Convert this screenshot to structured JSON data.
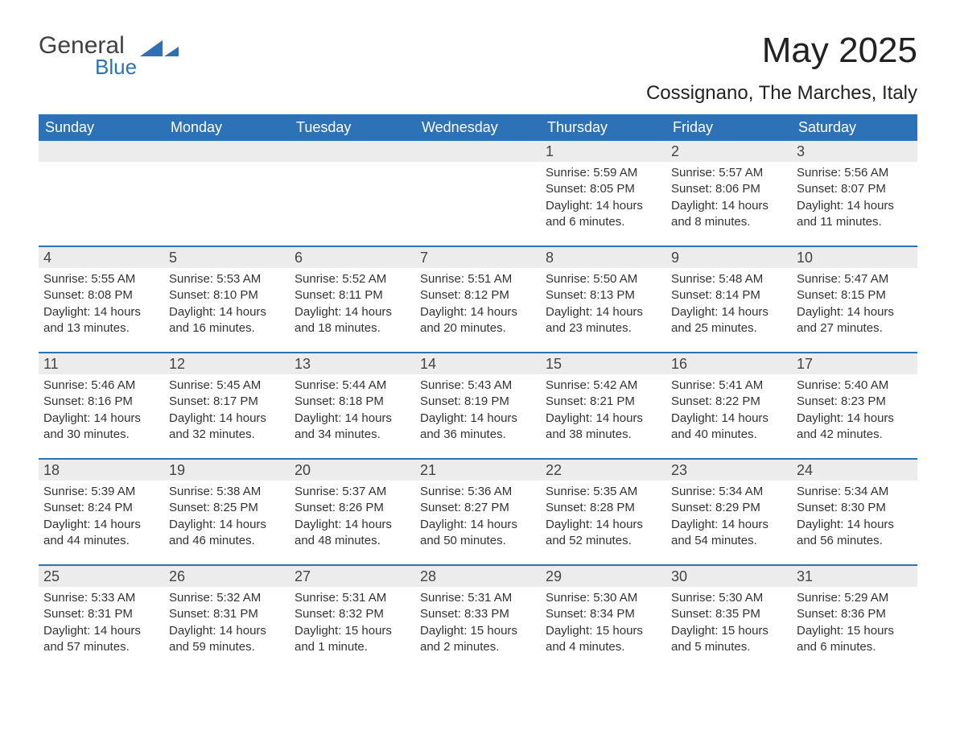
{
  "colors": {
    "header_bg": "#2d72b6",
    "header_text": "#ffffff",
    "daynum_bg": "#ececec",
    "body_text": "#333333",
    "logo_general": "#414141",
    "logo_blue": "#2d72b6",
    "week_border": "#2d72b6",
    "page_bg": "#ffffff"
  },
  "typography": {
    "month_title_size": 44,
    "location_size": 24,
    "dow_size": 18,
    "daynum_size": 18,
    "detail_size": 15,
    "font_family": "Arial, Helvetica, sans-serif"
  },
  "logo": {
    "general": "General",
    "blue": "Blue"
  },
  "title": {
    "month": "May 2025",
    "location": "Cossignano, The Marches, Italy"
  },
  "days_of_week": [
    "Sunday",
    "Monday",
    "Tuesday",
    "Wednesday",
    "Thursday",
    "Friday",
    "Saturday"
  ],
  "weeks": [
    [
      {
        "num": "",
        "sunrise": "",
        "sunset": "",
        "daylight": ""
      },
      {
        "num": "",
        "sunrise": "",
        "sunset": "",
        "daylight": ""
      },
      {
        "num": "",
        "sunrise": "",
        "sunset": "",
        "daylight": ""
      },
      {
        "num": "",
        "sunrise": "",
        "sunset": "",
        "daylight": ""
      },
      {
        "num": "1",
        "sunrise": "Sunrise: 5:59 AM",
        "sunset": "Sunset: 8:05 PM",
        "daylight": "Daylight: 14 hours and 6 minutes."
      },
      {
        "num": "2",
        "sunrise": "Sunrise: 5:57 AM",
        "sunset": "Sunset: 8:06 PM",
        "daylight": "Daylight: 14 hours and 8 minutes."
      },
      {
        "num": "3",
        "sunrise": "Sunrise: 5:56 AM",
        "sunset": "Sunset: 8:07 PM",
        "daylight": "Daylight: 14 hours and 11 minutes."
      }
    ],
    [
      {
        "num": "4",
        "sunrise": "Sunrise: 5:55 AM",
        "sunset": "Sunset: 8:08 PM",
        "daylight": "Daylight: 14 hours and 13 minutes."
      },
      {
        "num": "5",
        "sunrise": "Sunrise: 5:53 AM",
        "sunset": "Sunset: 8:10 PM",
        "daylight": "Daylight: 14 hours and 16 minutes."
      },
      {
        "num": "6",
        "sunrise": "Sunrise: 5:52 AM",
        "sunset": "Sunset: 8:11 PM",
        "daylight": "Daylight: 14 hours and 18 minutes."
      },
      {
        "num": "7",
        "sunrise": "Sunrise: 5:51 AM",
        "sunset": "Sunset: 8:12 PM",
        "daylight": "Daylight: 14 hours and 20 minutes."
      },
      {
        "num": "8",
        "sunrise": "Sunrise: 5:50 AM",
        "sunset": "Sunset: 8:13 PM",
        "daylight": "Daylight: 14 hours and 23 minutes."
      },
      {
        "num": "9",
        "sunrise": "Sunrise: 5:48 AM",
        "sunset": "Sunset: 8:14 PM",
        "daylight": "Daylight: 14 hours and 25 minutes."
      },
      {
        "num": "10",
        "sunrise": "Sunrise: 5:47 AM",
        "sunset": "Sunset: 8:15 PM",
        "daylight": "Daylight: 14 hours and 27 minutes."
      }
    ],
    [
      {
        "num": "11",
        "sunrise": "Sunrise: 5:46 AM",
        "sunset": "Sunset: 8:16 PM",
        "daylight": "Daylight: 14 hours and 30 minutes."
      },
      {
        "num": "12",
        "sunrise": "Sunrise: 5:45 AM",
        "sunset": "Sunset: 8:17 PM",
        "daylight": "Daylight: 14 hours and 32 minutes."
      },
      {
        "num": "13",
        "sunrise": "Sunrise: 5:44 AM",
        "sunset": "Sunset: 8:18 PM",
        "daylight": "Daylight: 14 hours and 34 minutes."
      },
      {
        "num": "14",
        "sunrise": "Sunrise: 5:43 AM",
        "sunset": "Sunset: 8:19 PM",
        "daylight": "Daylight: 14 hours and 36 minutes."
      },
      {
        "num": "15",
        "sunrise": "Sunrise: 5:42 AM",
        "sunset": "Sunset: 8:21 PM",
        "daylight": "Daylight: 14 hours and 38 minutes."
      },
      {
        "num": "16",
        "sunrise": "Sunrise: 5:41 AM",
        "sunset": "Sunset: 8:22 PM",
        "daylight": "Daylight: 14 hours and 40 minutes."
      },
      {
        "num": "17",
        "sunrise": "Sunrise: 5:40 AM",
        "sunset": "Sunset: 8:23 PM",
        "daylight": "Daylight: 14 hours and 42 minutes."
      }
    ],
    [
      {
        "num": "18",
        "sunrise": "Sunrise: 5:39 AM",
        "sunset": "Sunset: 8:24 PM",
        "daylight": "Daylight: 14 hours and 44 minutes."
      },
      {
        "num": "19",
        "sunrise": "Sunrise: 5:38 AM",
        "sunset": "Sunset: 8:25 PM",
        "daylight": "Daylight: 14 hours and 46 minutes."
      },
      {
        "num": "20",
        "sunrise": "Sunrise: 5:37 AM",
        "sunset": "Sunset: 8:26 PM",
        "daylight": "Daylight: 14 hours and 48 minutes."
      },
      {
        "num": "21",
        "sunrise": "Sunrise: 5:36 AM",
        "sunset": "Sunset: 8:27 PM",
        "daylight": "Daylight: 14 hours and 50 minutes."
      },
      {
        "num": "22",
        "sunrise": "Sunrise: 5:35 AM",
        "sunset": "Sunset: 8:28 PM",
        "daylight": "Daylight: 14 hours and 52 minutes."
      },
      {
        "num": "23",
        "sunrise": "Sunrise: 5:34 AM",
        "sunset": "Sunset: 8:29 PM",
        "daylight": "Daylight: 14 hours and 54 minutes."
      },
      {
        "num": "24",
        "sunrise": "Sunrise: 5:34 AM",
        "sunset": "Sunset: 8:30 PM",
        "daylight": "Daylight: 14 hours and 56 minutes."
      }
    ],
    [
      {
        "num": "25",
        "sunrise": "Sunrise: 5:33 AM",
        "sunset": "Sunset: 8:31 PM",
        "daylight": "Daylight: 14 hours and 57 minutes."
      },
      {
        "num": "26",
        "sunrise": "Sunrise: 5:32 AM",
        "sunset": "Sunset: 8:31 PM",
        "daylight": "Daylight: 14 hours and 59 minutes."
      },
      {
        "num": "27",
        "sunrise": "Sunrise: 5:31 AM",
        "sunset": "Sunset: 8:32 PM",
        "daylight": "Daylight: 15 hours and 1 minute."
      },
      {
        "num": "28",
        "sunrise": "Sunrise: 5:31 AM",
        "sunset": "Sunset: 8:33 PM",
        "daylight": "Daylight: 15 hours and 2 minutes."
      },
      {
        "num": "29",
        "sunrise": "Sunrise: 5:30 AM",
        "sunset": "Sunset: 8:34 PM",
        "daylight": "Daylight: 15 hours and 4 minutes."
      },
      {
        "num": "30",
        "sunrise": "Sunrise: 5:30 AM",
        "sunset": "Sunset: 8:35 PM",
        "daylight": "Daylight: 15 hours and 5 minutes."
      },
      {
        "num": "31",
        "sunrise": "Sunrise: 5:29 AM",
        "sunset": "Sunset: 8:36 PM",
        "daylight": "Daylight: 15 hours and 6 minutes."
      }
    ]
  ]
}
